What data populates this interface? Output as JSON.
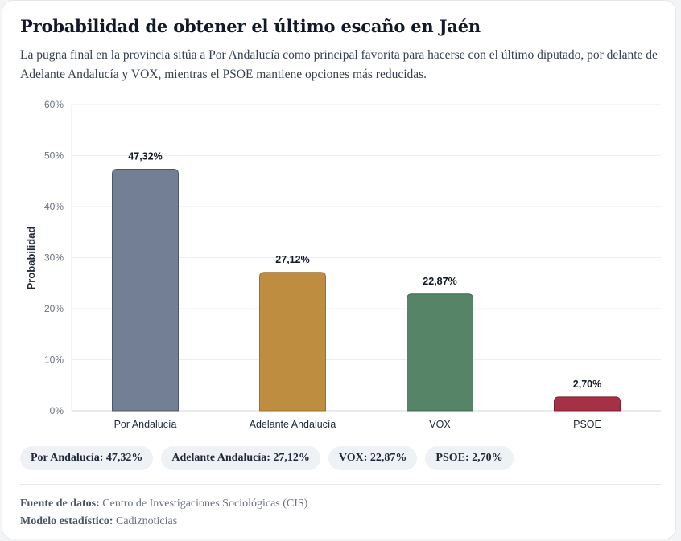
{
  "header": {
    "title": "Probabilidad de obtener el último escaño en Jaén",
    "subtitle": "La pugna final en la provincia sitúa a Por Andalucía como principal favorita para hacerse con el último diputado, por delante de Adelante Andalucía y VOX, mientras el PSOE mantiene opciones más reducidas."
  },
  "chart_data": {
    "type": "bar",
    "title": "Probabilidad de obtener el último escaño en Jaén",
    "xlabel": "",
    "ylabel": "Probabilidad",
    "ylim": [
      0,
      60
    ],
    "yticks": [
      0,
      10,
      20,
      30,
      40,
      50,
      60
    ],
    "ytick_labels": [
      "0%",
      "10%",
      "20%",
      "30%",
      "40%",
      "50%",
      "60%"
    ],
    "grid": true,
    "categories": [
      "Por Andalucía",
      "Adelante Andalucía",
      "VOX",
      "PSOE"
    ],
    "values": [
      47.32,
      27.12,
      22.87,
      2.7
    ],
    "value_labels": [
      "47,32%",
      "27,12%",
      "22,87%",
      "2,70%"
    ],
    "colors": [
      "#737f94",
      "#bf8d3f",
      "#558466",
      "#a53145"
    ],
    "border_colors": [
      "#4b5668",
      "#9b6f2a",
      "#3d6a4d",
      "#84202f"
    ]
  },
  "pills": [
    {
      "label": "Por Andalucía: 47,32%"
    },
    {
      "label": "Adelante Andalucía: 27,12%"
    },
    {
      "label": "VOX: 22,87%"
    },
    {
      "label": "PSOE: 2,70%"
    }
  ],
  "footer": {
    "source_label": "Fuente de datos:",
    "source_value": "Centro de Investigaciones Sociológicas (CIS)",
    "model_label": "Modelo estadístico:",
    "model_value": "Cadiznoticias"
  }
}
